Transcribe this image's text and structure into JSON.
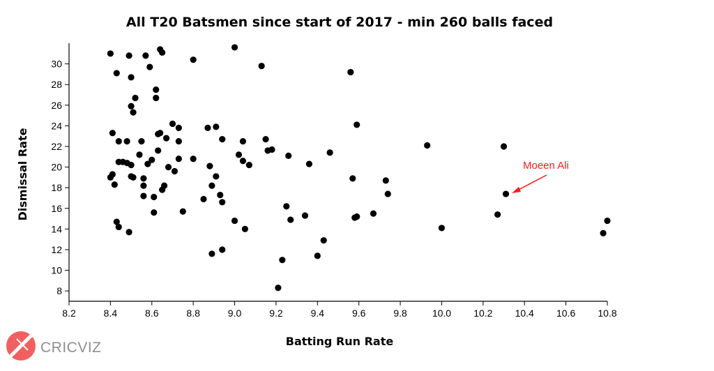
{
  "chart_data": {
    "type": "scatter",
    "title": "All T20 Batsmen since start of 2017 - min 260 balls faced",
    "xlabel": "Batting Run Rate",
    "ylabel": "Dismissal Rate",
    "xlim": [
      8.2,
      10.8
    ],
    "ylim": [
      7,
      32
    ],
    "xticks": [
      "8.2",
      "8.4",
      "8.6",
      "8.8",
      "9.0",
      "9.2",
      "9.4",
      "9.6",
      "9.8",
      "10.0",
      "10.2",
      "10.4",
      "10.6",
      "10.8"
    ],
    "yticks": [
      "8",
      "10",
      "12",
      "14",
      "16",
      "18",
      "20",
      "22",
      "24",
      "26",
      "28",
      "30"
    ],
    "grid": false,
    "point_color": "#000000",
    "annotation": {
      "text": "Moeen Ali",
      "x": 10.31,
      "y": 17.4,
      "color": "#ff1a1a"
    },
    "points": [
      [
        8.4,
        31.0
      ],
      [
        8.43,
        29.1
      ],
      [
        8.49,
        30.8
      ],
      [
        8.5,
        28.7
      ],
      [
        8.57,
        30.8
      ],
      [
        8.59,
        29.7
      ],
      [
        8.64,
        31.4
      ],
      [
        8.65,
        31.1
      ],
      [
        8.8,
        30.4
      ],
      [
        9.0,
        31.6
      ],
      [
        9.13,
        29.8
      ],
      [
        9.56,
        29.2
      ],
      [
        8.52,
        26.7
      ],
      [
        8.5,
        25.9
      ],
      [
        8.51,
        25.3
      ],
      [
        8.62,
        27.5
      ],
      [
        8.62,
        26.7
      ],
      [
        8.41,
        23.3
      ],
      [
        8.44,
        22.5
      ],
      [
        8.48,
        22.5
      ],
      [
        8.55,
        22.5
      ],
      [
        8.63,
        23.2
      ],
      [
        8.64,
        23.3
      ],
      [
        8.67,
        22.8
      ],
      [
        8.7,
        24.2
      ],
      [
        8.73,
        23.8
      ],
      [
        8.73,
        22.5
      ],
      [
        8.87,
        23.8
      ],
      [
        8.91,
        23.9
      ],
      [
        8.94,
        22.7
      ],
      [
        9.04,
        22.5
      ],
      [
        9.15,
        22.7
      ],
      [
        9.16,
        21.6
      ],
      [
        9.18,
        21.7
      ],
      [
        9.26,
        21.1
      ],
      [
        9.46,
        21.4
      ],
      [
        9.59,
        24.1
      ],
      [
        9.93,
        22.1
      ],
      [
        10.3,
        22.0
      ],
      [
        8.44,
        20.5
      ],
      [
        8.46,
        20.5
      ],
      [
        8.48,
        20.4
      ],
      [
        8.5,
        20.2
      ],
      [
        8.54,
        21.2
      ],
      [
        8.58,
        20.3
      ],
      [
        8.6,
        20.7
      ],
      [
        8.63,
        21.6
      ],
      [
        8.68,
        20.0
      ],
      [
        8.71,
        19.6
      ],
      [
        8.73,
        20.8
      ],
      [
        8.8,
        20.8
      ],
      [
        8.88,
        20.1
      ],
      [
        9.02,
        21.2
      ],
      [
        9.04,
        20.6
      ],
      [
        9.07,
        20.2
      ],
      [
        9.36,
        20.3
      ],
      [
        8.4,
        19.0
      ],
      [
        8.41,
        19.3
      ],
      [
        8.42,
        18.3
      ],
      [
        8.5,
        19.1
      ],
      [
        8.51,
        19.0
      ],
      [
        8.56,
        18.9
      ],
      [
        8.56,
        18.2
      ],
      [
        8.56,
        17.2
      ],
      [
        8.61,
        17.1
      ],
      [
        8.65,
        17.8
      ],
      [
        8.66,
        18.2
      ],
      [
        8.89,
        18.2
      ],
      [
        8.91,
        19.1
      ],
      [
        8.93,
        17.3
      ],
      [
        8.94,
        16.6
      ],
      [
        8.85,
        16.9
      ],
      [
        9.57,
        18.9
      ],
      [
        9.73,
        18.7
      ],
      [
        9.74,
        17.4
      ],
      [
        10.31,
        17.4
      ],
      [
        8.43,
        14.7
      ],
      [
        8.44,
        14.2
      ],
      [
        8.49,
        13.7
      ],
      [
        8.61,
        15.6
      ],
      [
        8.75,
        15.7
      ],
      [
        9.0,
        14.8
      ],
      [
        9.05,
        14.0
      ],
      [
        9.25,
        16.2
      ],
      [
        9.27,
        14.9
      ],
      [
        9.34,
        15.3
      ],
      [
        9.58,
        15.1
      ],
      [
        9.59,
        15.2
      ],
      [
        9.67,
        15.5
      ],
      [
        10.0,
        14.1
      ],
      [
        10.27,
        15.4
      ],
      [
        10.78,
        13.6
      ],
      [
        10.8,
        14.8
      ],
      [
        8.89,
        11.6
      ],
      [
        8.94,
        12.0
      ],
      [
        9.23,
        11.0
      ],
      [
        9.4,
        11.4
      ],
      [
        9.43,
        12.9
      ],
      [
        9.21,
        8.3
      ]
    ]
  },
  "branding": {
    "logo_text": "CRICVIZ",
    "logo_color": "#f06060"
  }
}
